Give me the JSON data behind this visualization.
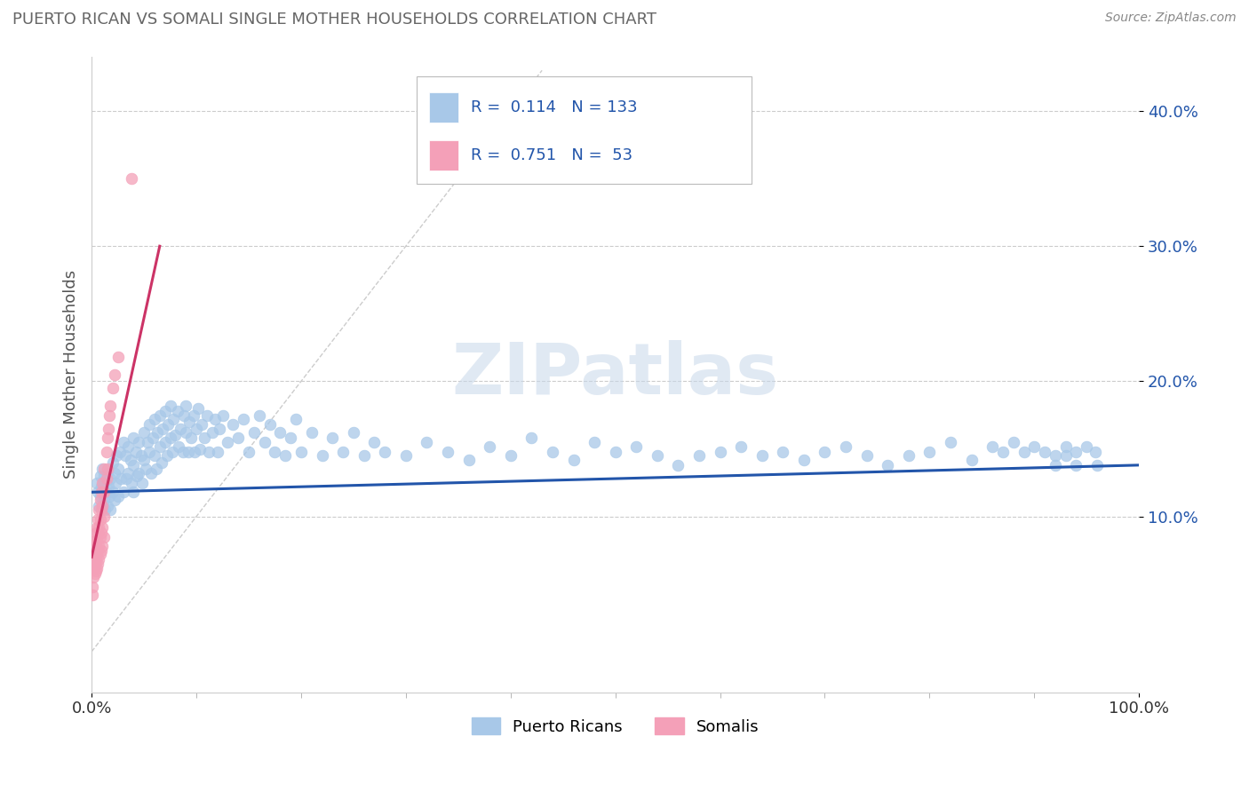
{
  "title": "PUERTO RICAN VS SOMALI SINGLE MOTHER HOUSEHOLDS CORRELATION CHART",
  "source": "Source: ZipAtlas.com",
  "ylabel": "Single Mother Households",
  "ytick_vals": [
    0.1,
    0.2,
    0.3,
    0.4
  ],
  "ytick_labels": [
    "10.0%",
    "20.0%",
    "30.0%",
    "40.0%"
  ],
  "xtick_vals": [
    0.0,
    1.0
  ],
  "xtick_labels": [
    "0.0%",
    "100.0%"
  ],
  "blue_color": "#a8c8e8",
  "pink_color": "#f4a0b8",
  "blue_line_color": "#2255aa",
  "pink_line_color": "#cc3366",
  "legend_blue_fill": "#a8c8e8",
  "legend_pink_fill": "#f4a0b8",
  "legend_text_color": "#2255aa",
  "watermark": "ZIPatlas",
  "background_color": "#ffffff",
  "grid_color": "#cccccc",
  "title_color": "#666666",
  "source_color": "#888888",
  "blue_r": 0.114,
  "blue_n": 133,
  "pink_r": 0.751,
  "pink_n": 53,
  "blue_line_x": [
    0.0,
    1.0
  ],
  "blue_line_y": [
    0.118,
    0.138
  ],
  "pink_line_x": [
    0.0,
    0.065
  ],
  "pink_line_y": [
    0.07,
    0.3
  ],
  "diag_line_x": [
    0.0,
    0.43
  ],
  "diag_line_y": [
    0.0,
    0.43
  ],
  "xlim": [
    0.0,
    1.0
  ],
  "ylim": [
    -0.03,
    0.44
  ],
  "blue_points": [
    [
      0.005,
      0.125
    ],
    [
      0.006,
      0.118
    ],
    [
      0.007,
      0.108
    ],
    [
      0.008,
      0.13
    ],
    [
      0.008,
      0.115
    ],
    [
      0.009,
      0.122
    ],
    [
      0.01,
      0.135
    ],
    [
      0.01,
      0.108
    ],
    [
      0.011,
      0.118
    ],
    [
      0.012,
      0.13
    ],
    [
      0.012,
      0.112
    ],
    [
      0.013,
      0.125
    ],
    [
      0.013,
      0.105
    ],
    [
      0.014,
      0.118
    ],
    [
      0.015,
      0.132
    ],
    [
      0.015,
      0.108
    ],
    [
      0.016,
      0.122
    ],
    [
      0.017,
      0.115
    ],
    [
      0.018,
      0.128
    ],
    [
      0.018,
      0.105
    ],
    [
      0.02,
      0.14
    ],
    [
      0.02,
      0.118
    ],
    [
      0.022,
      0.132
    ],
    [
      0.022,
      0.112
    ],
    [
      0.023,
      0.125
    ],
    [
      0.024,
      0.145
    ],
    [
      0.025,
      0.135
    ],
    [
      0.025,
      0.115
    ],
    [
      0.027,
      0.148
    ],
    [
      0.028,
      0.128
    ],
    [
      0.03,
      0.155
    ],
    [
      0.03,
      0.118
    ],
    [
      0.032,
      0.145
    ],
    [
      0.033,
      0.128
    ],
    [
      0.035,
      0.152
    ],
    [
      0.035,
      0.132
    ],
    [
      0.037,
      0.142
    ],
    [
      0.038,
      0.125
    ],
    [
      0.04,
      0.158
    ],
    [
      0.04,
      0.138
    ],
    [
      0.04,
      0.118
    ],
    [
      0.042,
      0.148
    ],
    [
      0.043,
      0.13
    ],
    [
      0.045,
      0.155
    ],
    [
      0.045,
      0.132
    ],
    [
      0.047,
      0.145
    ],
    [
      0.048,
      0.125
    ],
    [
      0.05,
      0.162
    ],
    [
      0.05,
      0.142
    ],
    [
      0.052,
      0.135
    ],
    [
      0.053,
      0.155
    ],
    [
      0.055,
      0.168
    ],
    [
      0.055,
      0.148
    ],
    [
      0.057,
      0.132
    ],
    [
      0.058,
      0.158
    ],
    [
      0.06,
      0.172
    ],
    [
      0.06,
      0.145
    ],
    [
      0.062,
      0.135
    ],
    [
      0.063,
      0.162
    ],
    [
      0.065,
      0.175
    ],
    [
      0.065,
      0.152
    ],
    [
      0.067,
      0.14
    ],
    [
      0.068,
      0.165
    ],
    [
      0.07,
      0.178
    ],
    [
      0.07,
      0.155
    ],
    [
      0.072,
      0.145
    ],
    [
      0.073,
      0.168
    ],
    [
      0.075,
      0.182
    ],
    [
      0.075,
      0.158
    ],
    [
      0.077,
      0.148
    ],
    [
      0.078,
      0.172
    ],
    [
      0.08,
      0.16
    ],
    [
      0.082,
      0.178
    ],
    [
      0.083,
      0.152
    ],
    [
      0.085,
      0.165
    ],
    [
      0.087,
      0.148
    ],
    [
      0.088,
      0.175
    ],
    [
      0.09,
      0.162
    ],
    [
      0.09,
      0.182
    ],
    [
      0.092,
      0.148
    ],
    [
      0.093,
      0.17
    ],
    [
      0.095,
      0.158
    ],
    [
      0.097,
      0.175
    ],
    [
      0.098,
      0.148
    ],
    [
      0.1,
      0.165
    ],
    [
      0.102,
      0.18
    ],
    [
      0.103,
      0.15
    ],
    [
      0.105,
      0.168
    ],
    [
      0.108,
      0.158
    ],
    [
      0.11,
      0.175
    ],
    [
      0.112,
      0.148
    ],
    [
      0.115,
      0.162
    ],
    [
      0.118,
      0.172
    ],
    [
      0.12,
      0.148
    ],
    [
      0.122,
      0.165
    ],
    [
      0.125,
      0.175
    ],
    [
      0.13,
      0.155
    ],
    [
      0.135,
      0.168
    ],
    [
      0.14,
      0.158
    ],
    [
      0.145,
      0.172
    ],
    [
      0.15,
      0.148
    ],
    [
      0.155,
      0.162
    ],
    [
      0.16,
      0.175
    ],
    [
      0.165,
      0.155
    ],
    [
      0.17,
      0.168
    ],
    [
      0.175,
      0.148
    ],
    [
      0.18,
      0.162
    ],
    [
      0.185,
      0.145
    ],
    [
      0.19,
      0.158
    ],
    [
      0.195,
      0.172
    ],
    [
      0.2,
      0.148
    ],
    [
      0.21,
      0.162
    ],
    [
      0.22,
      0.145
    ],
    [
      0.23,
      0.158
    ],
    [
      0.24,
      0.148
    ],
    [
      0.25,
      0.162
    ],
    [
      0.26,
      0.145
    ],
    [
      0.27,
      0.155
    ],
    [
      0.28,
      0.148
    ],
    [
      0.3,
      0.145
    ],
    [
      0.32,
      0.155
    ],
    [
      0.34,
      0.148
    ],
    [
      0.36,
      0.142
    ],
    [
      0.38,
      0.152
    ],
    [
      0.4,
      0.145
    ],
    [
      0.42,
      0.158
    ],
    [
      0.44,
      0.148
    ],
    [
      0.46,
      0.142
    ],
    [
      0.48,
      0.155
    ],
    [
      0.5,
      0.148
    ],
    [
      0.52,
      0.152
    ],
    [
      0.54,
      0.145
    ],
    [
      0.56,
      0.138
    ],
    [
      0.58,
      0.145
    ],
    [
      0.6,
      0.148
    ],
    [
      0.62,
      0.152
    ],
    [
      0.64,
      0.145
    ],
    [
      0.66,
      0.148
    ],
    [
      0.68,
      0.142
    ],
    [
      0.7,
      0.148
    ],
    [
      0.72,
      0.152
    ],
    [
      0.74,
      0.145
    ],
    [
      0.76,
      0.138
    ],
    [
      0.78,
      0.145
    ],
    [
      0.8,
      0.148
    ],
    [
      0.82,
      0.155
    ],
    [
      0.84,
      0.142
    ],
    [
      0.86,
      0.152
    ],
    [
      0.87,
      0.148
    ],
    [
      0.88,
      0.155
    ],
    [
      0.89,
      0.148
    ],
    [
      0.9,
      0.152
    ],
    [
      0.91,
      0.148
    ],
    [
      0.92,
      0.145
    ],
    [
      0.92,
      0.138
    ],
    [
      0.93,
      0.152
    ],
    [
      0.93,
      0.145
    ],
    [
      0.94,
      0.148
    ],
    [
      0.94,
      0.138
    ],
    [
      0.95,
      0.152
    ],
    [
      0.958,
      0.148
    ],
    [
      0.96,
      0.138
    ]
  ],
  "pink_points": [
    [
      0.002,
      0.075
    ],
    [
      0.002,
      0.068
    ],
    [
      0.002,
      0.062
    ],
    [
      0.002,
      0.055
    ],
    [
      0.003,
      0.082
    ],
    [
      0.003,
      0.072
    ],
    [
      0.003,
      0.065
    ],
    [
      0.003,
      0.058
    ],
    [
      0.004,
      0.088
    ],
    [
      0.004,
      0.078
    ],
    [
      0.004,
      0.068
    ],
    [
      0.004,
      0.06
    ],
    [
      0.005,
      0.092
    ],
    [
      0.005,
      0.082
    ],
    [
      0.005,
      0.072
    ],
    [
      0.005,
      0.062
    ],
    [
      0.006,
      0.098
    ],
    [
      0.006,
      0.088
    ],
    [
      0.006,
      0.075
    ],
    [
      0.006,
      0.065
    ],
    [
      0.007,
      0.105
    ],
    [
      0.007,
      0.092
    ],
    [
      0.007,
      0.078
    ],
    [
      0.007,
      0.068
    ],
    [
      0.008,
      0.112
    ],
    [
      0.008,
      0.098
    ],
    [
      0.008,
      0.085
    ],
    [
      0.008,
      0.072
    ],
    [
      0.009,
      0.118
    ],
    [
      0.009,
      0.105
    ],
    [
      0.009,
      0.088
    ],
    [
      0.009,
      0.075
    ],
    [
      0.01,
      0.125
    ],
    [
      0.01,
      0.108
    ],
    [
      0.01,
      0.092
    ],
    [
      0.01,
      0.078
    ],
    [
      0.012,
      0.135
    ],
    [
      0.012,
      0.118
    ],
    [
      0.012,
      0.1
    ],
    [
      0.012,
      0.085
    ],
    [
      0.014,
      0.148
    ],
    [
      0.014,
      0.128
    ],
    [
      0.015,
      0.158
    ],
    [
      0.015,
      0.135
    ],
    [
      0.016,
      0.165
    ],
    [
      0.017,
      0.175
    ],
    [
      0.018,
      0.182
    ],
    [
      0.02,
      0.195
    ],
    [
      0.022,
      0.205
    ],
    [
      0.025,
      0.218
    ],
    [
      0.038,
      0.35
    ],
    [
      0.001,
      0.048
    ],
    [
      0.001,
      0.042
    ]
  ]
}
